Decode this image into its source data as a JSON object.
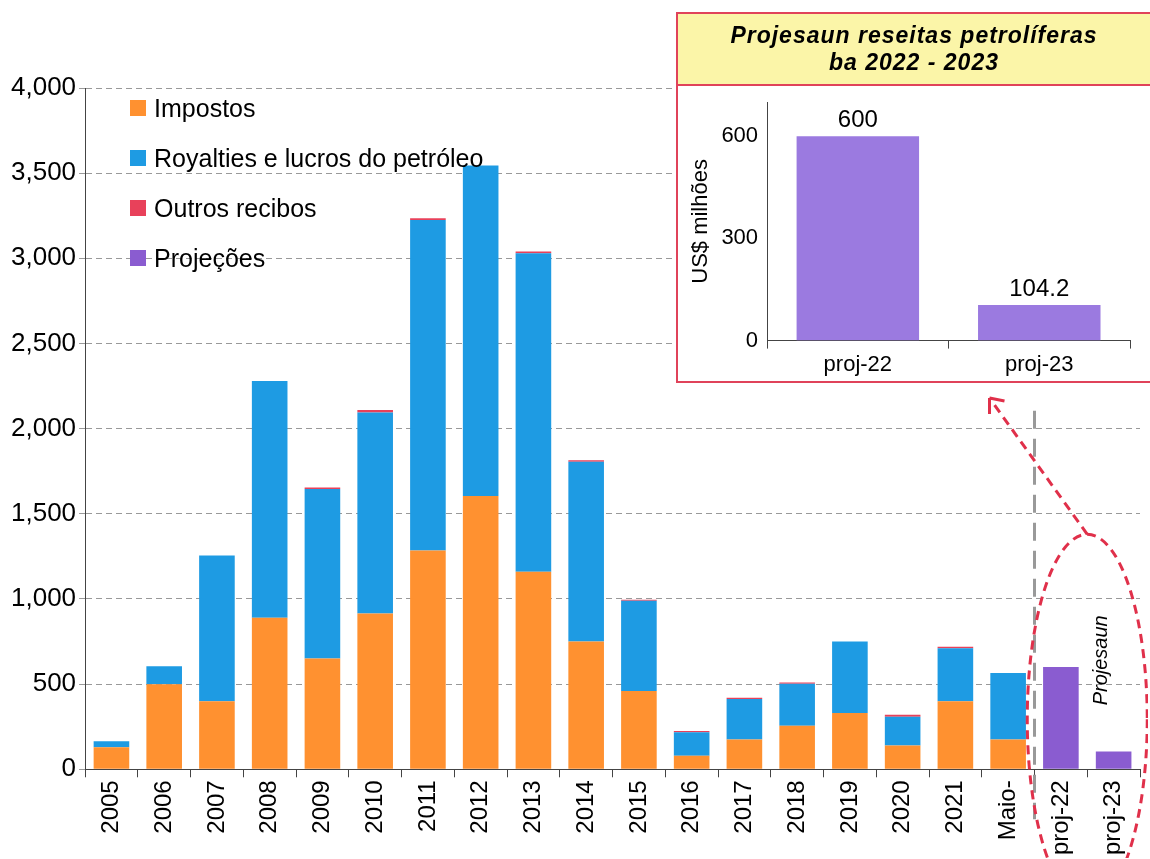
{
  "chart_data": [
    {
      "type": "bar",
      "stacked": true,
      "categories": [
        "2005",
        "2006",
        "2007",
        "2008",
        "2009",
        "2010",
        "2011",
        "2012",
        "2013",
        "2014",
        "2015",
        "2016",
        "2017",
        "2018",
        "2019",
        "2020",
        "2021",
        "Maio-",
        "proj-22",
        "proj-23"
      ],
      "series": [
        {
          "name": "Impostos",
          "color": "#ff9130",
          "values": [
            130,
            500,
            400,
            890,
            650,
            915,
            1285,
            1605,
            1160,
            750,
            460,
            80,
            175,
            255,
            330,
            140,
            400,
            175,
            null,
            null
          ]
        },
        {
          "name": "Royalties e lucros do petróleo",
          "color": "#1e9be3",
          "values": [
            35,
            105,
            855,
            1390,
            995,
            1180,
            1940,
            1940,
            1870,
            1055,
            530,
            137,
            237,
            247,
            420,
            168,
            310,
            390,
            null,
            null
          ]
        },
        {
          "name": "Outros recibos",
          "color": "#e8415a",
          "values": [
            null,
            null,
            null,
            null,
            10,
            15,
            10,
            null,
            10,
            10,
            5,
            8,
            8,
            8,
            null,
            12,
            10,
            null,
            null,
            null
          ]
        },
        {
          "name": "Projeções",
          "color": "#8a5cd0",
          "values": [
            null,
            null,
            null,
            null,
            null,
            null,
            null,
            null,
            null,
            null,
            null,
            null,
            null,
            null,
            null,
            null,
            null,
            null,
            600,
            104.2
          ]
        }
      ],
      "ylim": [
        0,
        4000
      ],
      "yticks": [
        0,
        500,
        {
          "value": 1000,
          "label": "1,000"
        },
        {
          "value": 1500,
          "label": "1,500"
        },
        {
          "value": 2000,
          "label": "2,000"
        },
        {
          "value": 2500,
          "label": "2,500"
        },
        {
          "value": 3000,
          "label": "3,000"
        },
        {
          "value": 3500,
          "label": "3,500"
        },
        {
          "value": 4000,
          "label": "4,000"
        }
      ],
      "grid": "y",
      "legend": "top left",
      "annotations": [
        "Projesaun"
      ],
      "ref_lines": [
        {
          "axis": "x",
          "value": "proj-22",
          "color": "#999999",
          "line_style": "dashed"
        }
      ]
    },
    {
      "type": "bar",
      "title": "Projesaun reseitas petrolíferas ba 2022 - 2023",
      "ylabel": "US$ milhões",
      "categories": [
        "proj-22",
        "proj-23"
      ],
      "values": [
        600,
        104.2
      ],
      "color": "#9b7ae0",
      "ylim": [
        0,
        700
      ],
      "yticks": [
        0,
        300,
        600
      ],
      "data_labels": true,
      "grid": false
    }
  ]
}
